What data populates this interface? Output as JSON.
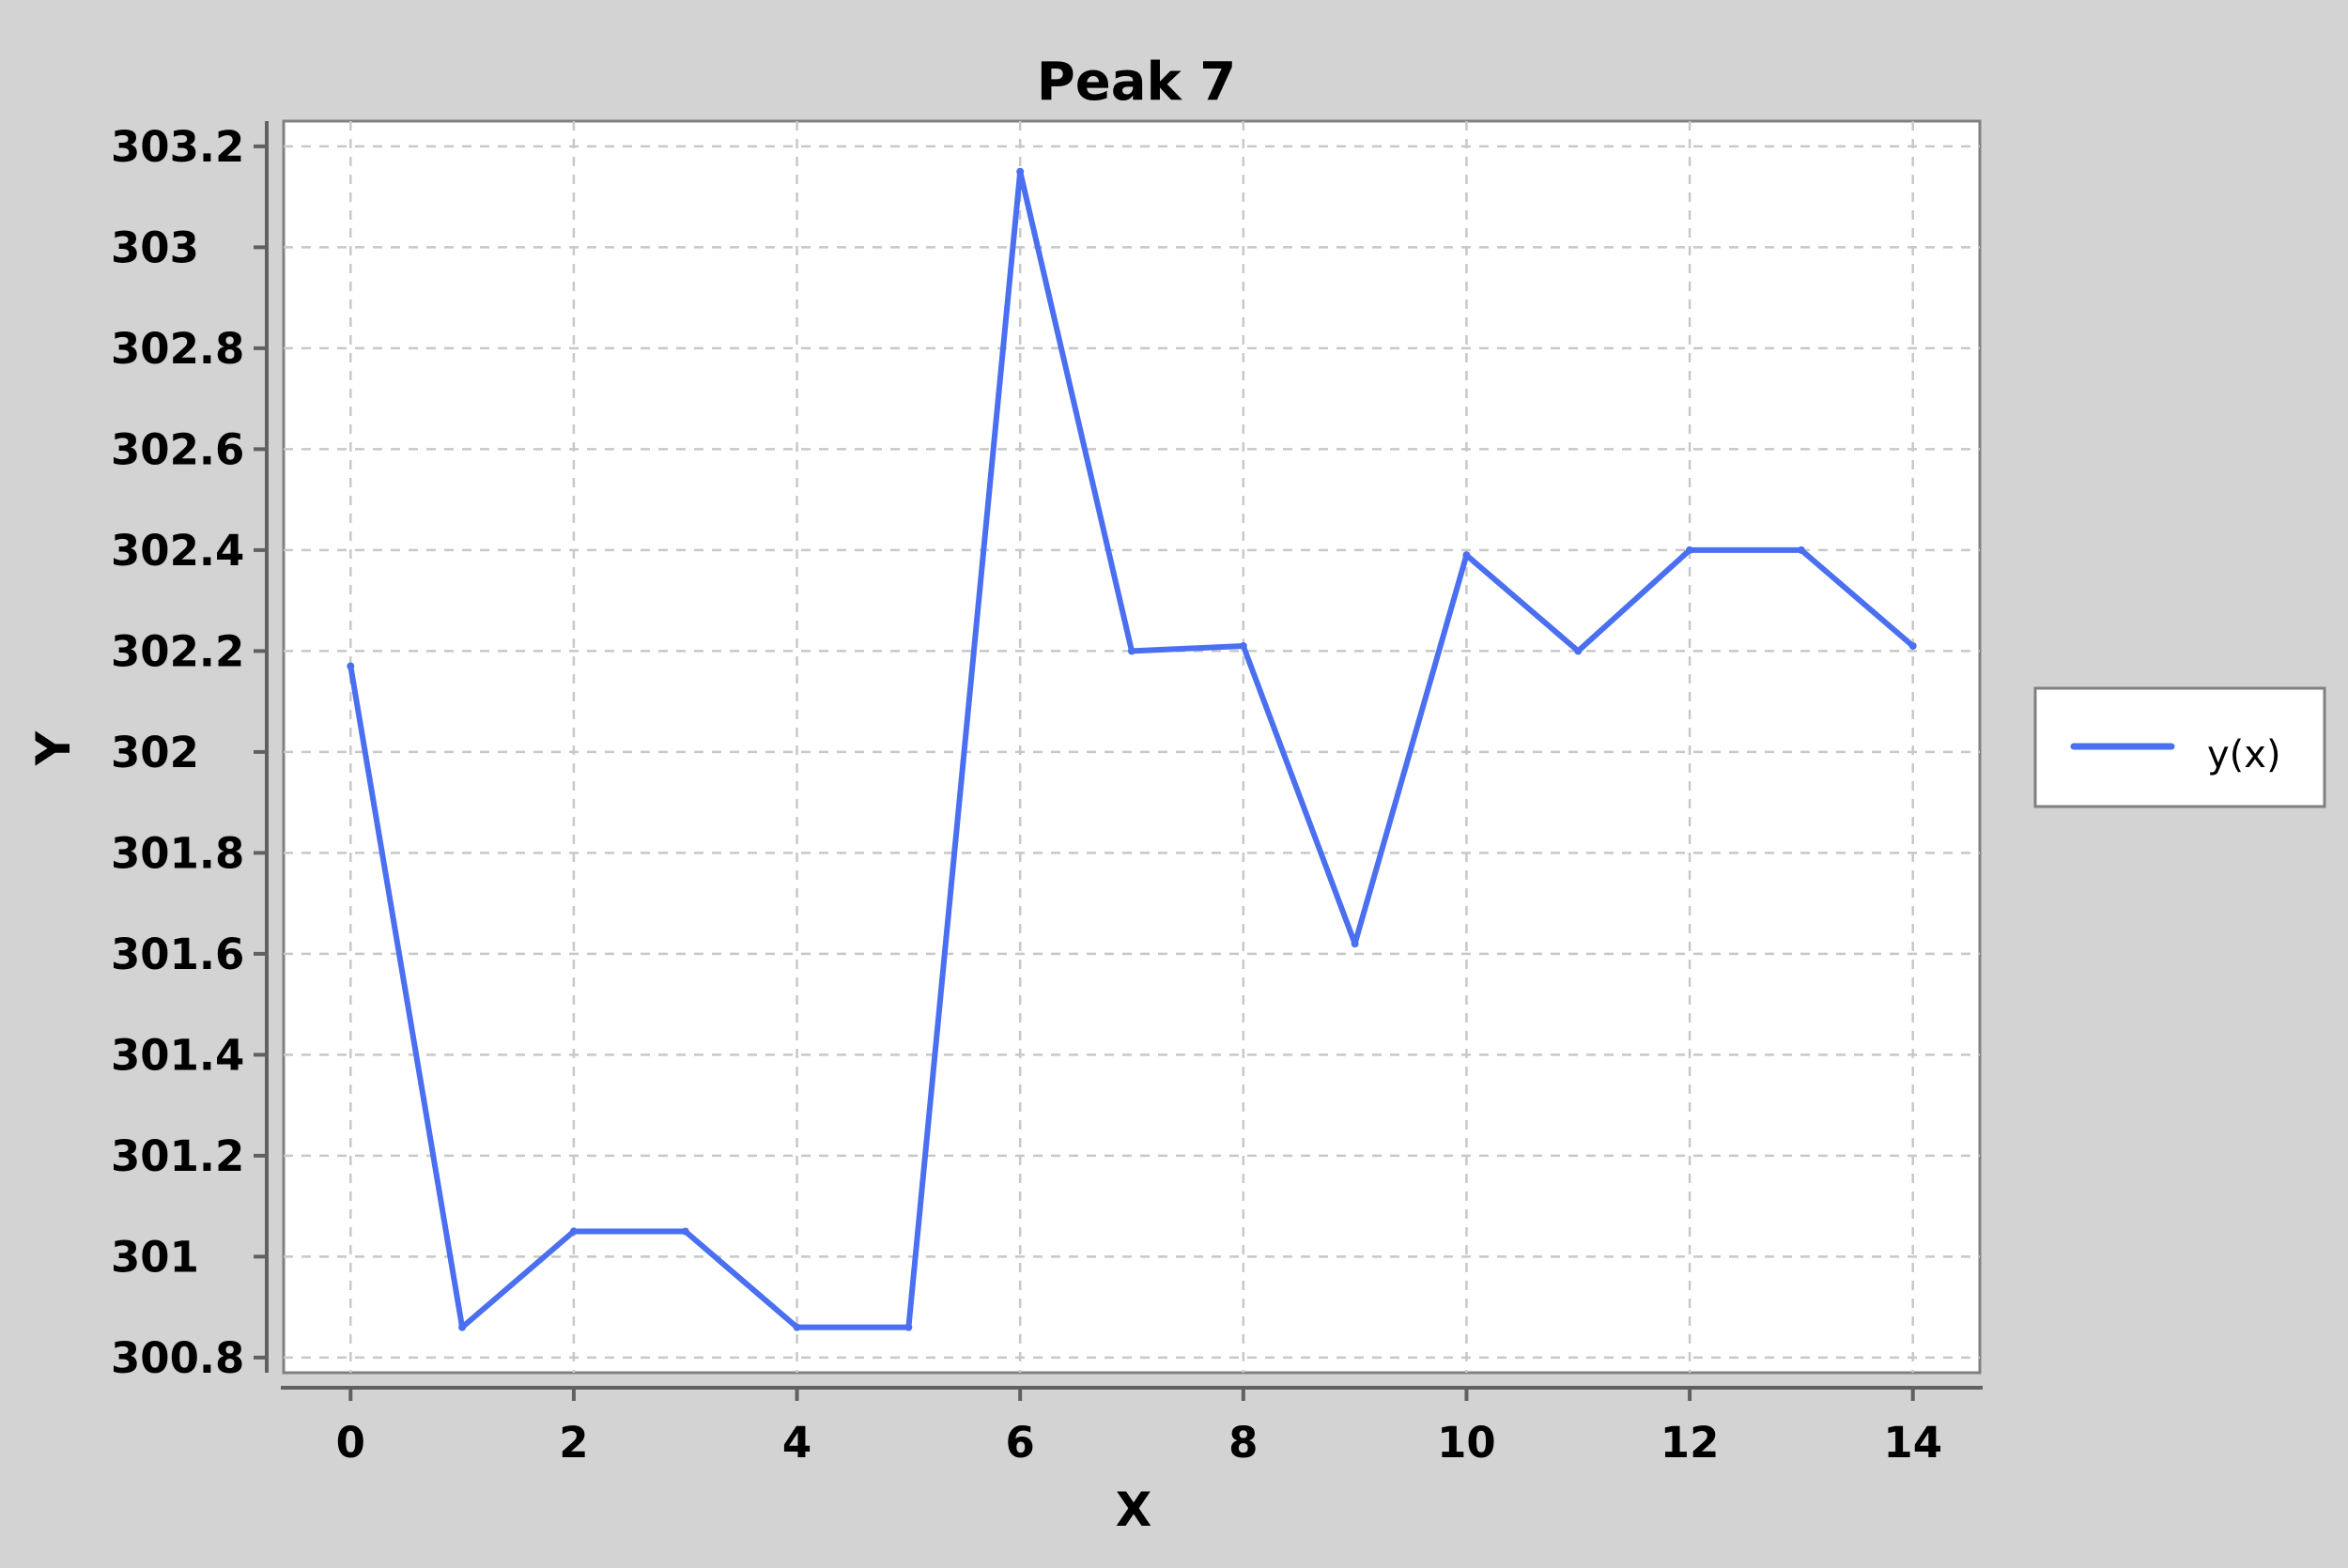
{
  "chart_data": {
    "type": "line",
    "title": "Peak 7",
    "xlabel": "X",
    "ylabel": "Y",
    "xlim": [
      -0.6,
      14.6
    ],
    "ylim": [
      300.77,
      303.25
    ],
    "xticks": [
      0,
      2,
      4,
      6,
      8,
      10,
      12,
      14
    ],
    "xtick_labels": [
      "0",
      "2",
      "4",
      "6",
      "8",
      "10",
      "12",
      "14"
    ],
    "yticks": [
      300.8,
      301.0,
      301.2,
      301.4,
      301.6,
      301.8,
      302.0,
      302.2,
      302.4,
      302.6,
      302.8,
      303.0,
      303.2
    ],
    "ytick_labels": [
      "300.8",
      "301",
      "301.2",
      "301.4",
      "301.6",
      "301.8",
      "302",
      "302.2",
      "302.4",
      "302.6",
      "302.8",
      "303",
      "303.2"
    ],
    "grid": true,
    "legend_position": "right",
    "series": [
      {
        "name": "y(x)",
        "color": "#4a6ff0",
        "x": [
          0,
          1,
          2,
          3,
          4,
          5,
          6,
          7,
          8,
          9,
          10,
          11,
          12,
          13,
          14
        ],
        "y": [
          302.17,
          300.86,
          301.05,
          301.05,
          300.86,
          300.86,
          303.15,
          302.2,
          302.21,
          301.62,
          302.39,
          302.2,
          302.4,
          302.4,
          302.21
        ]
      }
    ]
  }
}
